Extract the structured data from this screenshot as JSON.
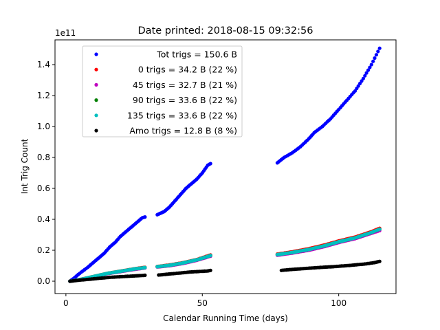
{
  "chart_data": {
    "type": "scatter",
    "title": "Date printed: 2018-08-15 09:32:56",
    "xlabel": "Calendar Running Time (days)",
    "ylabel": "Int Trig Count",
    "y_offset_text": "1e11",
    "xlim": [
      -4,
      121
    ],
    "ylim": [
      -8000000000.0,
      156000000000.0
    ],
    "xticks": [
      0,
      50,
      100
    ],
    "yticks": [
      0,
      20000000000.0,
      40000000000.0,
      60000000000.0,
      80000000000.0,
      100000000000.0,
      120000000000.0,
      140000000000.0
    ],
    "ytick_labels": [
      "0.0",
      "0.2",
      "0.4",
      "0.6",
      "0.8",
      "1.0",
      "1.2",
      "1.4"
    ],
    "grid": false,
    "legend_position": "upper-left",
    "series": [
      {
        "name": "Tot trigs = 150.6 B",
        "color": "#0000ff",
        "segments": [
          {
            "x": [
              1.5,
              3,
              5,
              8,
              10,
              12,
              14,
              16,
              18,
              20,
              22,
              24,
              26,
              28,
              29
            ],
            "y": [
              0.0,
              2000000000.0,
              5000000000.0,
              9000000000.0,
              12000000000.0,
              15000000000.0,
              18000000000.0,
              22000000000.0,
              25000000000.0,
              29000000000.0,
              32000000000.0,
              35000000000.0,
              38000000000.0,
              41000000000.0,
              41500000000.0
            ]
          },
          {
            "x": [
              33.5,
              36,
              38,
              40,
              42,
              44,
              46,
              48,
              50,
              52,
              53
            ],
            "y": [
              43000000000.0,
              45000000000.0,
              48000000000.0,
              52000000000.0,
              56000000000.0,
              60000000000.0,
              63000000000.0,
              66000000000.0,
              70000000000.0,
              75000000000.0,
              76000000000.0
            ]
          },
          {
            "x": [
              77.5,
              80,
              83,
              86,
              89,
              91,
              94,
              97,
              100,
              103,
              106,
              109,
              112,
              115
            ],
            "y": [
              76500000000.0,
              80000000000.0,
              83000000000.0,
              87000000000.0,
              92000000000.0,
              96000000000.0,
              100000000000.0,
              105000000000.0,
              111000000000.0,
              117000000000.0,
              123000000000.0,
              131000000000.0,
              140000000000.0,
              150600000000.0
            ]
          }
        ]
      },
      {
        "name": "0 trigs = 34.2 B (22 %)",
        "color": "#ff0000",
        "segments": [
          {
            "x": [
              1.5,
              5,
              10,
              15,
              20,
              25,
              29
            ],
            "y": [
              0.0,
              1000000000.0,
              3000000000.0,
              5000000000.0,
              6500000000.0,
              8000000000.0,
              9000000000.0
            ]
          },
          {
            "x": [
              33.5,
              38,
              43,
              48,
              53
            ],
            "y": [
              9500000000.0,
              10500000000.0,
              12000000000.0,
              14000000000.0,
              17000000000.0
            ]
          },
          {
            "x": [
              77.5,
              83,
              89,
              95,
              100,
              106,
              112,
              115
            ],
            "y": [
              17500000000.0,
              19000000000.0,
              21000000000.0,
              23500000000.0,
              26000000000.0,
              28500000000.0,
              32000000000.0,
              34200000000.0
            ]
          }
        ]
      },
      {
        "name": "45 trigs = 32.7 B (21 %)",
        "color": "#bf00bf",
        "segments": [
          {
            "x": [
              1.5,
              5,
              10,
              15,
              20,
              25,
              29
            ],
            "y": [
              0.0,
              1000000000.0,
              2800000000.0,
              4800000000.0,
              6200000000.0,
              7600000000.0,
              8600000000.0
            ]
          },
          {
            "x": [
              33.5,
              38,
              43,
              48,
              53
            ],
            "y": [
              9200000000.0,
              10000000000.0,
              11500000000.0,
              13500000000.0,
              16200000000.0
            ]
          },
          {
            "x": [
              77.5,
              83,
              89,
              95,
              100,
              106,
              112,
              115
            ],
            "y": [
              16800000000.0,
              18200000000.0,
              20000000000.0,
              22500000000.0,
              25000000000.0,
              27500000000.0,
              31000000000.0,
              32700000000.0
            ]
          }
        ]
      },
      {
        "name": "90 trigs = 33.6 B (22 %)",
        "color": "#008000",
        "segments": [
          {
            "x": [
              1.5,
              5,
              10,
              15,
              20,
              25,
              29
            ],
            "y": [
              0.0,
              1000000000.0,
              3000000000.0,
              5000000000.0,
              6400000000.0,
              7900000000.0,
              8800000000.0
            ]
          },
          {
            "x": [
              33.5,
              38,
              43,
              48,
              53
            ],
            "y": [
              9400000000.0,
              10300000000.0,
              11800000000.0,
              13800000000.0,
              16600000000.0
            ]
          },
          {
            "x": [
              77.5,
              83,
              89,
              95,
              100,
              106,
              112,
              115
            ],
            "y": [
              17200000000.0,
              18600000000.0,
              20500000000.0,
              23000000000.0,
              25500000000.0,
              28000000000.0,
              31500000000.0,
              33600000000.0
            ]
          }
        ]
      },
      {
        "name": "135 trigs = 33.6 B (22 %)",
        "color": "#00bfbf",
        "segments": [
          {
            "x": [
              1.5,
              5,
              10,
              15,
              20,
              25,
              29
            ],
            "y": [
              0.0,
              1000000000.0,
              3000000000.0,
              5000000000.0,
              6400000000.0,
              7900000000.0,
              8800000000.0
            ]
          },
          {
            "x": [
              33.5,
              38,
              43,
              48,
              53
            ],
            "y": [
              9400000000.0,
              10300000000.0,
              11800000000.0,
              13800000000.0,
              16600000000.0
            ]
          },
          {
            "x": [
              77.5,
              83,
              89,
              95,
              100,
              106,
              112,
              115
            ],
            "y": [
              17200000000.0,
              18600000000.0,
              20500000000.0,
              23000000000.0,
              25500000000.0,
              28000000000.0,
              31500000000.0,
              33600000000.0
            ]
          }
        ]
      },
      {
        "name": "Amo trigs = 12.8 B (8 %)",
        "color": "#000000",
        "segments": [
          {
            "x": [
              1.5,
              4,
              7,
              10,
              13,
              16,
              19,
              22,
              25,
              27,
              29
            ],
            "y": [
              0.0,
              500000000.0,
              1000000000.0,
              1500000000.0,
              2000000000.0,
              2500000000.0,
              2800000000.0,
              3100000000.0,
              3400000000.0,
              3600000000.0,
              3800000000.0
            ]
          },
          {
            "x": [
              34,
              37,
              40,
              43,
              46,
              49,
              52,
              53
            ],
            "y": [
              4000000000.0,
              4500000000.0,
              5000000000.0,
              5500000000.0,
              6000000000.0,
              6300000000.0,
              6600000000.0,
              7000000000.0
            ]
          },
          {
            "x": [
              79,
              82,
              86,
              90,
              94,
              98,
              101,
              104,
              107,
              110,
              113,
              115
            ],
            "y": [
              7000000000.0,
              7500000000.0,
              8000000000.0,
              8500000000.0,
              9000000000.0,
              9400000000.0,
              9800000000.0,
              10200000000.0,
              10700000000.0,
              11200000000.0,
              12000000000.0,
              12800000000.0
            ]
          }
        ]
      }
    ]
  }
}
